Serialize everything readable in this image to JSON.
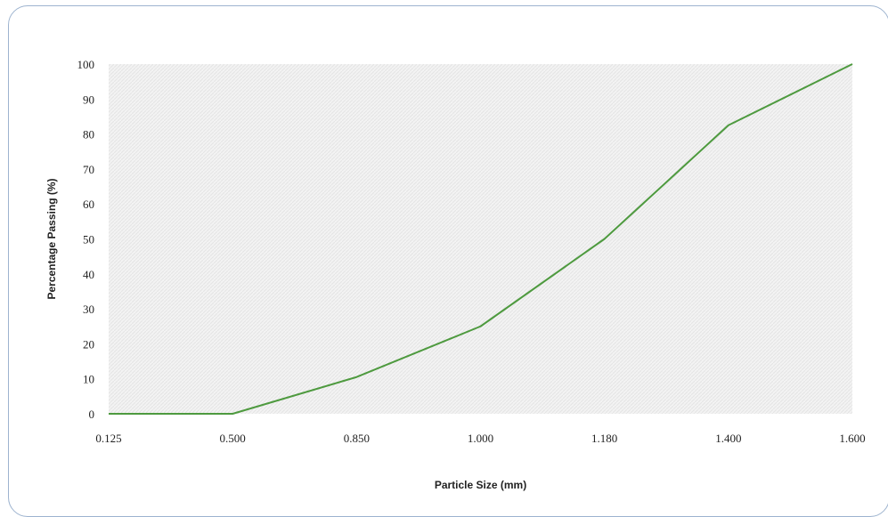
{
  "chart_data": {
    "type": "line",
    "title": "",
    "xlabel": "Particle Size (mm)",
    "ylabel": "Percentage Passing (%)",
    "categories": [
      "0.125",
      "0.500",
      "0.850",
      "1.000",
      "1.180",
      "1.400",
      "1.600"
    ],
    "series": [
      {
        "values": [
          0,
          0,
          10.5,
          25,
          50,
          82.5,
          100
        ],
        "color": "#4e9a3f"
      }
    ],
    "ylim": [
      0,
      100
    ],
    "yticks": [
      0,
      10,
      20,
      30,
      40,
      50,
      60,
      70,
      80,
      90,
      100
    ],
    "ytick_labels": [
      "0",
      "10",
      "20",
      "30",
      "40",
      "50",
      "60",
      "70",
      "80",
      "90",
      "100"
    ],
    "grid": false,
    "legend": "none",
    "plot_background": "#f2f2f2"
  }
}
